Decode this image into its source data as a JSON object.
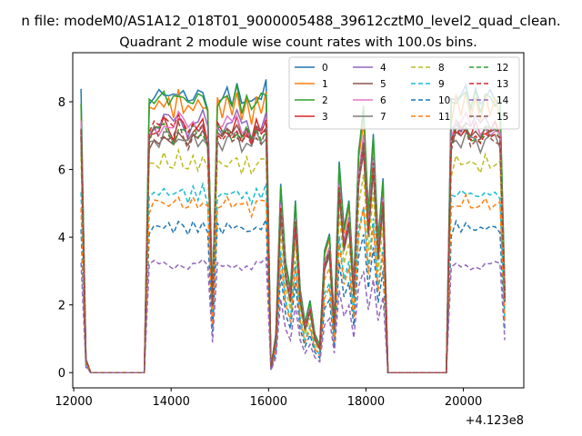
{
  "suptitle": "n file: modeM0/AS1A12_018T01_9000005488_39612cztM0_level2_quad_clean.",
  "chart_data": {
    "type": "line",
    "title": "Quadrant 2 module wise count rates with 100.0s bins.",
    "xlabel": "",
    "ylabel": "",
    "x_offset_label": "+4.123e8",
    "xlim": [
      11980,
      21240
    ],
    "ylim": [
      -0.45,
      9.45
    ],
    "xticks": [
      12000,
      14000,
      16000,
      18000,
      20000
    ],
    "xtick_labels": [
      "12000",
      "14000",
      "16000",
      "18000",
      "20000"
    ],
    "yticks": [
      0,
      2,
      4,
      6,
      8
    ],
    "ytick_labels": [
      "0",
      "2",
      "4",
      "6",
      "8"
    ],
    "grid": false,
    "legend_position": "top-right",
    "x": [
      12150,
      12250,
      12350,
      12450,
      12550,
      12650,
      12750,
      12850,
      12950,
      13050,
      13150,
      13250,
      13350,
      13450,
      13550,
      13650,
      13750,
      13850,
      13950,
      14050,
      14150,
      14250,
      14350,
      14450,
      14550,
      14650,
      14750,
      14850,
      14950,
      15050,
      15150,
      15250,
      15350,
      15450,
      15550,
      15650,
      15750,
      15850,
      15950,
      16050,
      16150,
      16250,
      16350,
      16450,
      16550,
      16650,
      16750,
      16850,
      16950,
      17050,
      17150,
      17250,
      17350,
      17450,
      17550,
      17650,
      17750,
      17850,
      17950,
      18050,
      18150,
      18250,
      18350,
      18450,
      18550,
      18650,
      18750,
      18850,
      18950,
      19050,
      19150,
      19250,
      19350,
      19450,
      19550,
      19650,
      19750,
      19850,
      19950,
      20050,
      20150,
      20250,
      20350,
      20450,
      20550,
      20650,
      20750,
      20850
    ],
    "base_profile": [
      1.0,
      0.05,
      0,
      0,
      0,
      0,
      0,
      0,
      0,
      0,
      0,
      0,
      0,
      0,
      0.97,
      1.01,
      0.99,
      1.02,
      1.0,
      0.98,
      1.03,
      1.0,
      0.97,
      1.01,
      0.99,
      1.02,
      0.96,
      0.28,
      1.0,
      0.98,
      1.01,
      0.99,
      1.02,
      0.97,
      1.0,
      0.95,
      1.01,
      0.99,
      1.03,
      0.02,
      0.14,
      0.68,
      0.4,
      0.3,
      0.62,
      0.3,
      0.18,
      0.26,
      0.14,
      0.1,
      0.44,
      0.5,
      0.18,
      0.76,
      0.52,
      0.62,
      0.32,
      0.8,
      0.95,
      0.58,
      0.86,
      0.48,
      0.7,
      0.0,
      0,
      0,
      0,
      0,
      0,
      0,
      0,
      0,
      0,
      0,
      0,
      0,
      0.96,
      1.01,
      0.99,
      1.02,
      0.98,
      1.0,
      0.97,
      1.01,
      0.99,
      1.0,
      0.98,
      0.3
    ],
    "series": [
      {
        "name": "0",
        "level": 8.2,
        "color": "#1f77b4",
        "dashed": false
      },
      {
        "name": "1",
        "level": 7.9,
        "color": "#ff7f0e",
        "dashed": false
      },
      {
        "name": "2",
        "level": 8.1,
        "color": "#2ca02c",
        "dashed": false
      },
      {
        "name": "3",
        "level": 7.2,
        "color": "#d62728",
        "dashed": false
      },
      {
        "name": "4",
        "level": 7.4,
        "color": "#9467bd",
        "dashed": false
      },
      {
        "name": "5",
        "level": 7.0,
        "color": "#8c564b",
        "dashed": false
      },
      {
        "name": "6",
        "level": 7.3,
        "color": "#e377c2",
        "dashed": false
      },
      {
        "name": "7",
        "level": 6.9,
        "color": "#7f7f7f",
        "dashed": false
      },
      {
        "name": "8",
        "level": 6.2,
        "color": "#bcbd22",
        "dashed": true
      },
      {
        "name": "9",
        "level": 5.3,
        "color": "#17becf",
        "dashed": true
      },
      {
        "name": "10",
        "level": 4.3,
        "color": "#1f77b4",
        "dashed": true
      },
      {
        "name": "11",
        "level": 5.0,
        "color": "#ff7f0e",
        "dashed": true
      },
      {
        "name": "12",
        "level": 7.1,
        "color": "#2ca02c",
        "dashed": true
      },
      {
        "name": "13",
        "level": 7.2,
        "color": "#d62728",
        "dashed": true
      },
      {
        "name": "14",
        "level": 3.2,
        "color": "#9467bd",
        "dashed": true
      },
      {
        "name": "15",
        "level": 7.0,
        "color": "#8c564b",
        "dashed": true
      }
    ]
  }
}
